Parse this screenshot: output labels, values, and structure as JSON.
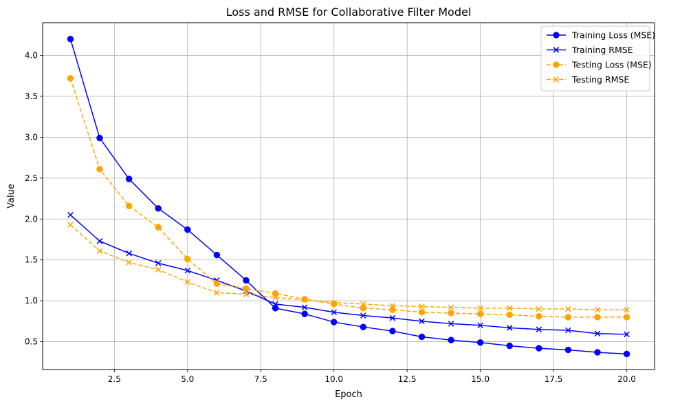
{
  "chart_data": {
    "type": "line",
    "title": "Loss and RMSE for Collaborative Filter Model",
    "xlabel": "Epoch",
    "ylabel": "Value",
    "xlim": [
      0.05,
      20.95
    ],
    "ylim": [
      0.16,
      4.4
    ],
    "xticks": [
      2.5,
      5.0,
      7.5,
      10.0,
      12.5,
      15.0,
      17.5,
      20.0
    ],
    "xtick_labels": [
      "2.5",
      "5.0",
      "7.5",
      "10.0",
      "12.5",
      "15.0",
      "17.5",
      "20.0"
    ],
    "yticks": [
      0.5,
      1.0,
      1.5,
      2.0,
      2.5,
      3.0,
      3.5,
      4.0
    ],
    "ytick_labels": [
      "0.5",
      "1.0",
      "1.5",
      "2.0",
      "2.5",
      "3.0",
      "3.5",
      "4.0"
    ],
    "grid": true,
    "legend_position": "top-right",
    "x": [
      1,
      2,
      3,
      4,
      5,
      6,
      7,
      8,
      9,
      10,
      11,
      12,
      13,
      14,
      15,
      16,
      17,
      18,
      19,
      20
    ],
    "series": [
      {
        "name": "Training Loss (MSE)",
        "color": "#0000ff",
        "marker": "circle",
        "dash": "solid",
        "values": [
          4.2,
          2.99,
          2.49,
          2.13,
          1.87,
          1.56,
          1.25,
          0.91,
          0.84,
          0.74,
          0.68,
          0.63,
          0.56,
          0.52,
          0.49,
          0.45,
          0.42,
          0.4,
          0.37,
          0.35
        ]
      },
      {
        "name": "Training RMSE",
        "color": "#0000ff",
        "marker": "x",
        "dash": "solid",
        "values": [
          2.05,
          1.73,
          1.58,
          1.46,
          1.37,
          1.25,
          1.12,
          0.96,
          0.92,
          0.86,
          0.82,
          0.79,
          0.75,
          0.72,
          0.7,
          0.67,
          0.65,
          0.64,
          0.6,
          0.59
        ]
      },
      {
        "name": "Testing Loss (MSE)",
        "color": "#ffa500",
        "marker": "circle",
        "dash": "dashed",
        "values": [
          3.72,
          2.61,
          2.16,
          1.9,
          1.51,
          1.21,
          1.15,
          1.09,
          1.02,
          0.96,
          0.91,
          0.89,
          0.86,
          0.85,
          0.84,
          0.83,
          0.81,
          0.8,
          0.8,
          0.8
        ]
      },
      {
        "name": "Testing RMSE",
        "color": "#ffa500",
        "marker": "x",
        "dash": "dashed",
        "values": [
          1.93,
          1.61,
          1.47,
          1.38,
          1.23,
          1.1,
          1.08,
          1.04,
          1.01,
          0.98,
          0.96,
          0.94,
          0.93,
          0.92,
          0.91,
          0.91,
          0.9,
          0.9,
          0.89,
          0.89
        ]
      }
    ]
  }
}
